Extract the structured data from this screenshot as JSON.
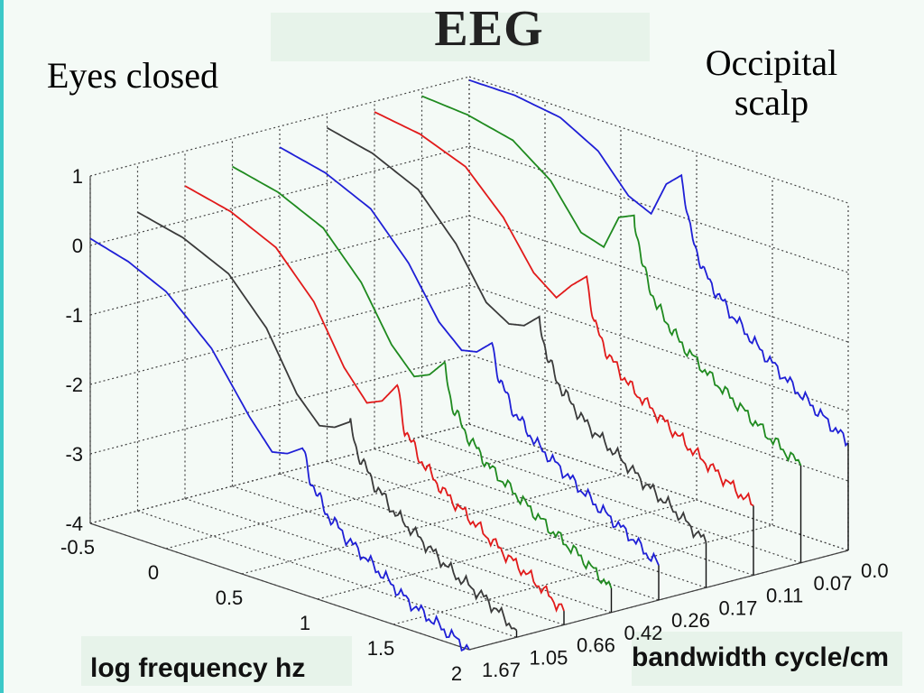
{
  "title": "EEG",
  "left_note": "Eyes closed",
  "right_note": "Occipital\nscalp",
  "colors": {
    "blue": "#1f1fd6",
    "black": "#3a3a3a",
    "red": "#e11a1a",
    "green": "#1f8a1f",
    "grid": "#444444"
  },
  "chart_data": {
    "type": "line",
    "view": "3d-waterfall",
    "xlabel": "log frequency hz",
    "ylabel": "bandwidth cycle/cm",
    "zlabel": "",
    "x_ticks": [
      -0.5,
      0,
      0.5,
      1,
      1.5,
      2
    ],
    "x_tick_labels": [
      "-0.5",
      "0",
      "0.5",
      "1",
      "1.5",
      "2"
    ],
    "y_tick_labels": [
      "1.67",
      "1.05",
      "0.66",
      "0.42",
      "0.26",
      "0.17",
      "0.11",
      "0.07",
      "0.0"
    ],
    "z_ticks": [
      1,
      0,
      -1,
      -2,
      -3,
      -4
    ],
    "z_tick_labels": [
      "1",
      "0",
      "-1",
      "-2",
      "-3",
      "-4"
    ],
    "xlim": [
      -0.5,
      2
    ],
    "zlim": [
      -4,
      1
    ],
    "grid": true,
    "legend": "none",
    "series": [
      {
        "bandwidth": "1.67",
        "color": "blue",
        "x": [
          -0.5,
          -0.25,
          0.0,
          0.3,
          0.55,
          0.7,
          0.8,
          0.9,
          0.95,
          1.05,
          1.2,
          1.4,
          1.6,
          1.8,
          2.0
        ],
        "z": [
          0.1,
          -0.05,
          -0.3,
          -0.9,
          -1.7,
          -2.1,
          -2.05,
          -1.9,
          -2.3,
          -2.7,
          -3.0,
          -3.3,
          -3.6,
          -3.8,
          -4.0
        ]
      },
      {
        "bandwidth": "1.05",
        "color": "black",
        "x": [
          -0.5,
          -0.2,
          0.1,
          0.35,
          0.55,
          0.7,
          0.8,
          0.9,
          0.95,
          1.05,
          1.2,
          1.4,
          1.6,
          1.8,
          2.0
        ],
        "z": [
          0.3,
          0.15,
          -0.15,
          -0.75,
          -1.55,
          -1.9,
          -1.85,
          -1.7,
          -2.1,
          -2.45,
          -2.8,
          -3.1,
          -3.4,
          -3.6,
          -3.9
        ]
      },
      {
        "bandwidth": "0.66",
        "color": "red",
        "x": [
          -0.5,
          -0.2,
          0.1,
          0.35,
          0.55,
          0.7,
          0.8,
          0.9,
          0.95,
          1.05,
          1.2,
          1.4,
          1.6,
          1.8,
          2.0
        ],
        "z": [
          0.5,
          0.35,
          0.05,
          -0.55,
          -1.35,
          -1.75,
          -1.65,
          -1.35,
          -1.95,
          -2.3,
          -2.65,
          -2.95,
          -3.25,
          -3.5,
          -3.8
        ]
      },
      {
        "bandwidth": "0.42",
        "color": "green",
        "x": [
          -0.5,
          -0.2,
          0.1,
          0.35,
          0.55,
          0.7,
          0.8,
          0.9,
          0.95,
          1.05,
          1.2,
          1.4,
          1.6,
          1.8,
          2.0
        ],
        "z": [
          0.6,
          0.45,
          0.15,
          -0.45,
          -1.2,
          -1.55,
          -1.45,
          -1.2,
          -1.8,
          -2.15,
          -2.5,
          -2.8,
          -3.1,
          -3.35,
          -3.65
        ]
      },
      {
        "bandwidth": "0.26",
        "color": "blue",
        "x": [
          -0.5,
          -0.2,
          0.1,
          0.35,
          0.55,
          0.7,
          0.8,
          0.9,
          0.95,
          1.05,
          1.2,
          1.4,
          1.6,
          1.8,
          2.0
        ],
        "z": [
          0.7,
          0.55,
          0.25,
          -0.35,
          -1.05,
          -1.35,
          -1.3,
          -1.1,
          -1.6,
          -2.0,
          -2.35,
          -2.65,
          -2.95,
          -3.2,
          -3.5
        ]
      },
      {
        "bandwidth": "0.17",
        "color": "black",
        "x": [
          -0.5,
          -0.2,
          0.1,
          0.35,
          0.55,
          0.7,
          0.8,
          0.9,
          0.95,
          1.05,
          1.2,
          1.4,
          1.6,
          1.8,
          2.0
        ],
        "z": [
          0.8,
          0.65,
          0.35,
          -0.25,
          -0.95,
          -1.15,
          -1.1,
          -0.9,
          -1.45,
          -1.85,
          -2.2,
          -2.5,
          -2.8,
          -3.05,
          -3.35
        ]
      },
      {
        "bandwidth": "0.11",
        "color": "red",
        "x": [
          -0.5,
          -0.2,
          0.1,
          0.35,
          0.55,
          0.7,
          0.8,
          0.9,
          0.95,
          1.05,
          1.2,
          1.4,
          1.6,
          1.8,
          2.0
        ],
        "z": [
          0.85,
          0.75,
          0.5,
          -0.05,
          -0.7,
          -0.95,
          -0.7,
          -0.5,
          -1.15,
          -1.55,
          -1.9,
          -2.2,
          -2.5,
          -2.75,
          -3.0
        ]
      },
      {
        "bandwidth": "0.07",
        "color": "green",
        "x": [
          -0.5,
          -0.2,
          0.1,
          0.35,
          0.55,
          0.7,
          0.8,
          0.9,
          0.95,
          1.05,
          1.2,
          1.4,
          1.6,
          1.8,
          2.0
        ],
        "z": [
          0.9,
          0.85,
          0.7,
          0.3,
          -0.3,
          -0.4,
          0.1,
          0.2,
          -0.45,
          -1.0,
          -1.4,
          -1.75,
          -2.05,
          -2.35,
          -2.6
        ]
      },
      {
        "bandwidth": "0.0",
        "color": "blue",
        "x": [
          -0.5,
          -0.2,
          0.1,
          0.35,
          0.55,
          0.7,
          0.8,
          0.9,
          0.95,
          1.05,
          1.2,
          1.4,
          1.6,
          1.8,
          2.0
        ],
        "z": [
          0.95,
          0.95,
          0.85,
          0.55,
          0.05,
          -0.1,
          0.4,
          0.6,
          -0.1,
          -0.7,
          -1.1,
          -1.5,
          -1.85,
          -2.15,
          -2.45
        ]
      }
    ]
  }
}
